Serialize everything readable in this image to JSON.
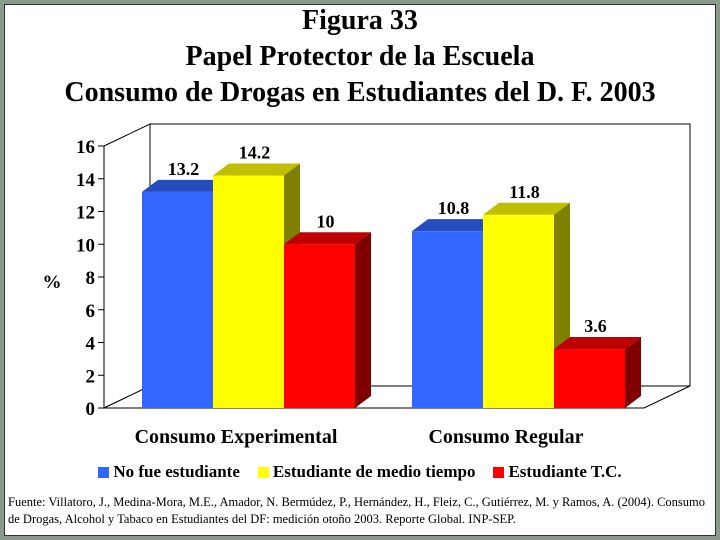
{
  "title_lines": [
    "Figura 33",
    "Papel Protector de la Escuela",
    "Consumo de Drogas en Estudiantes del D. F. 2003"
  ],
  "chart_data": {
    "type": "bar",
    "categories": [
      "Consumo Experimental",
      "Consumo Regular"
    ],
    "series": [
      {
        "name": "No fue estudiante",
        "values": [
          13.2,
          10.8
        ],
        "color": "#3366ff"
      },
      {
        "name": "Estudiante de medio tiempo",
        "values": [
          14.2,
          11.8
        ],
        "color": "#ffff00"
      },
      {
        "name": "Estudiante T.C.",
        "values": [
          10,
          3.6
        ],
        "color": "#ff0000"
      }
    ],
    "data_labels": [
      [
        "13.2",
        "10.8"
      ],
      [
        "14.2",
        "11.8"
      ],
      [
        "10",
        "3.6"
      ]
    ],
    "ylabel": "%",
    "ylim": [
      0,
      16
    ],
    "yticks": [
      "0",
      "2",
      "4",
      "6",
      "8",
      "10",
      "12",
      "14",
      "16"
    ],
    "legend_position": "bottom",
    "style": "3d-clustered"
  },
  "source_text": "Fuente: Villatoro, J., Medina-Mora, M.E., Amador, N. Bermúdez, P., Hernández, H., Fleiz, C., Gutiérrez, M. y Ramos, A. (2004). Consumo de Drogas, Alcohol y Tabaco en Estudiantes del DF: medición otoño 2003. Reporte Global. INP-SEP."
}
